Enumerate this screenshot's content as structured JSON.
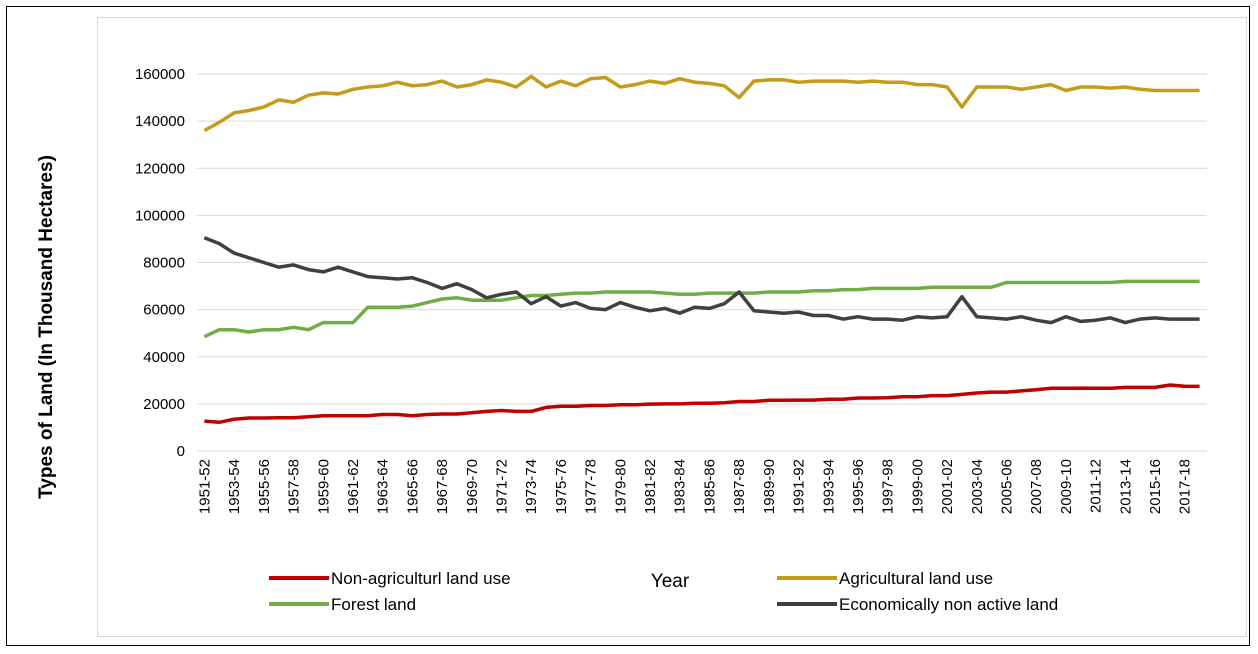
{
  "chart_data": {
    "type": "line",
    "title": "",
    "ylabel": "Types of Land (In Thousand Hectares)",
    "xlabel": "Year",
    "ylim": [
      0,
      160000
    ],
    "yticks": [
      0,
      20000,
      40000,
      60000,
      80000,
      100000,
      120000,
      140000,
      160000
    ],
    "grid": true,
    "legend_position": "bottom",
    "x": [
      "1951-52",
      "1952-53",
      "1953-54",
      "1954-55",
      "1955-56",
      "1956-57",
      "1957-58",
      "1958-59",
      "1959-60",
      "1960-61",
      "1961-62",
      "1962-63",
      "1963-64",
      "1964-65",
      "1965-66",
      "1966-67",
      "1967-68",
      "1968-69",
      "1969-70",
      "1970-71",
      "1971-72",
      "1972-73",
      "1973-74",
      "1974-75",
      "1975-76",
      "1976-77",
      "1977-78",
      "1978-79",
      "1979-80",
      "1980-81",
      "1981-82",
      "1982-83",
      "1983-84",
      "1984-85",
      "1985-86",
      "1986-87",
      "1987-88",
      "1988-89",
      "1989-90",
      "1990-91",
      "1991-92",
      "1992-93",
      "1993-94",
      "1994-95",
      "1995-96",
      "1996-97",
      "1997-98",
      "1998-99",
      "1999-00",
      "2000-01",
      "2001-02",
      "2002-03",
      "2003-04",
      "2004-05",
      "2005-06",
      "2006-07",
      "2007-08",
      "2008-09",
      "2009-10",
      "2010-11",
      "2011-12",
      "2012-13",
      "2013-14",
      "2014-15",
      "2015-16",
      "2016-17",
      "2017-18",
      "2018-19"
    ],
    "x_tick_labels": [
      "1951-52",
      "1953-54",
      "1955-56",
      "1957-58",
      "1959-60",
      "1961-62",
      "1963-64",
      "1965-66",
      "1967-68",
      "1969-70",
      "1971-72",
      "1973-74",
      "1975-76",
      "1977-78",
      "1979-80",
      "1981-82",
      "1983-84",
      "1985-86",
      "1987-88",
      "1989-90",
      "1991-92",
      "1993-94",
      "1995-96",
      "1997-98",
      "1999-00",
      "2001-02",
      "2003-04",
      "2005-06",
      "2007-08",
      "2009-10",
      "2011-12",
      "2013-14",
      "2015-16",
      "2017-18"
    ],
    "series": [
      {
        "name": "Non-agriculturl land use",
        "color": "#c00000",
        "values": [
          12700,
          12200,
          13500,
          14000,
          14000,
          14100,
          14100,
          14500,
          15000,
          15000,
          15000,
          15000,
          15500,
          15500,
          15000,
          15500,
          15700,
          15700,
          16200,
          16800,
          17200,
          16800,
          16800,
          18500,
          19000,
          19000,
          19300,
          19300,
          19600,
          19600,
          19900,
          20000,
          20000,
          20300,
          20300,
          20500,
          21000,
          21000,
          21500,
          21500,
          21600,
          21600,
          22000,
          22000,
          22500,
          22500,
          22600,
          23000,
          23000,
          23500,
          23500,
          24000,
          24600,
          25000,
          25000,
          25500,
          26000,
          26600,
          26600,
          26700,
          26600,
          26600,
          27000,
          27000,
          27000,
          28000,
          27500,
          27400
        ]
      },
      {
        "name": "Agricultural land use",
        "color": "#c49b1a",
        "values": [
          136000,
          139500,
          143500,
          144500,
          146000,
          149000,
          148000,
          151000,
          152000,
          151500,
          153500,
          154500,
          155000,
          156500,
          155000,
          155500,
          157000,
          154500,
          155500,
          157500,
          156500,
          154500,
          159000,
          154500,
          157000,
          155000,
          158000,
          158500,
          154500,
          155500,
          157000,
          156000,
          158000,
          156500,
          156000,
          155000,
          150000,
          157000,
          157500,
          157500,
          156500,
          157000,
          157000,
          157000,
          156500,
          157000,
          156500,
          156500,
          155500,
          155500,
          154500,
          146000,
          154500,
          154500,
          154500,
          153500,
          154500,
          155500,
          153000,
          154500,
          154500,
          154000,
          154500,
          153500,
          153000,
          153000,
          153000,
          153000
        ]
      },
      {
        "name": "Forest land",
        "color": "#70ad47",
        "values": [
          48500,
          51500,
          51500,
          50500,
          51500,
          51500,
          52500,
          51500,
          54500,
          54500,
          54500,
          61000,
          61000,
          61000,
          61500,
          63000,
          64500,
          65000,
          64000,
          64000,
          64000,
          65000,
          66000,
          66000,
          66500,
          67000,
          67000,
          67500,
          67500,
          67500,
          67500,
          67000,
          66500,
          66500,
          67000,
          67000,
          67000,
          67000,
          67500,
          67500,
          67500,
          68000,
          68000,
          68500,
          68500,
          69000,
          69000,
          69000,
          69000,
          69500,
          69500,
          69500,
          69500,
          69500,
          71500,
          71500,
          71500,
          71500,
          71500,
          71500,
          71500,
          71500,
          72000,
          72000,
          72000,
          72000,
          72000,
          72000
        ]
      },
      {
        "name": "Economically non active land",
        "color": "#404040",
        "values": [
          90500,
          88000,
          84000,
          82000,
          80000,
          78000,
          79000,
          77000,
          76000,
          78000,
          76000,
          74000,
          73500,
          73000,
          73500,
          71500,
          69000,
          71000,
          68500,
          65000,
          66500,
          67500,
          62500,
          65500,
          61500,
          63000,
          60500,
          60000,
          63000,
          61000,
          59500,
          60500,
          58500,
          61000,
          60500,
          62500,
          67500,
          59500,
          59000,
          58500,
          59000,
          57500,
          57500,
          56000,
          57000,
          56000,
          56000,
          55500,
          57000,
          56500,
          57000,
          65500,
          57000,
          56500,
          56000,
          57000,
          55500,
          54500,
          57000,
          55000,
          55500,
          56500,
          54500,
          56000,
          56500,
          56000,
          56000,
          56000
        ]
      }
    ]
  }
}
